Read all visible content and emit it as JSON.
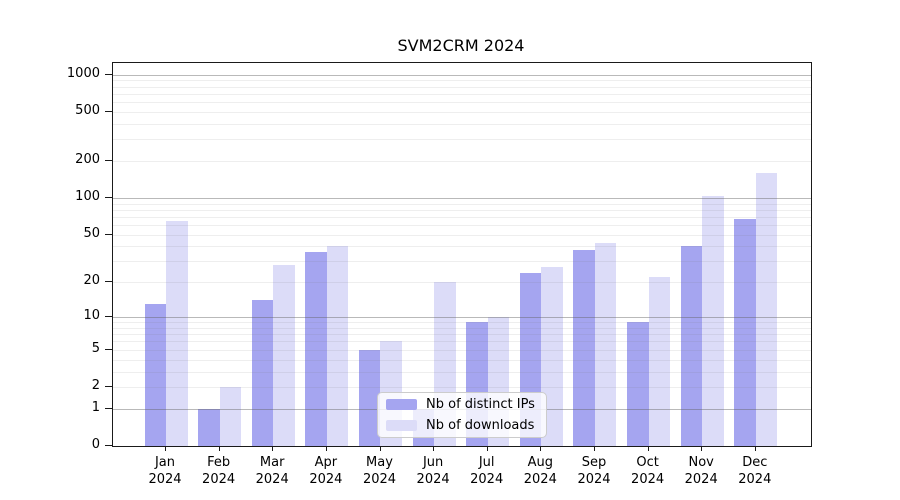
{
  "title": "SVM2CRM 2024",
  "chart_data": {
    "type": "bar",
    "title": "SVM2CRM 2024",
    "categories": [
      "Jan 2024",
      "Feb 2024",
      "Mar 2024",
      "Apr 2024",
      "May 2024",
      "Jun 2024",
      "Jul 2024",
      "Aug 2024",
      "Sep 2024",
      "Oct 2024",
      "Nov 2024",
      "Dec 2024"
    ],
    "series": [
      {
        "name": "Nb of distinct IPs",
        "color": "#a5a5f0",
        "values": [
          13,
          1,
          14,
          36,
          5,
          1,
          9,
          24,
          37,
          9,
          40,
          67
        ]
      },
      {
        "name": "Nb of downloads",
        "color": "#dcdcf8",
        "values": [
          65,
          2,
          28,
          40,
          6,
          20,
          10,
          27,
          43,
          22,
          104,
          160
        ]
      }
    ],
    "xlabel": "",
    "ylabel": "",
    "yscale": "log1p",
    "yticks": [
      0,
      1,
      2,
      5,
      10,
      20,
      50,
      100,
      200,
      500,
      1000
    ],
    "ylim": [
      0,
      1237
    ],
    "grid": "horizontal, major and minor, drawn over bars",
    "legend_position": "inside bottom-center"
  },
  "colors": {
    "spine": "#1a1a1a",
    "major_grid": "#999999",
    "minor_grid": "#e8e8e8",
    "background": "#ffffff"
  }
}
